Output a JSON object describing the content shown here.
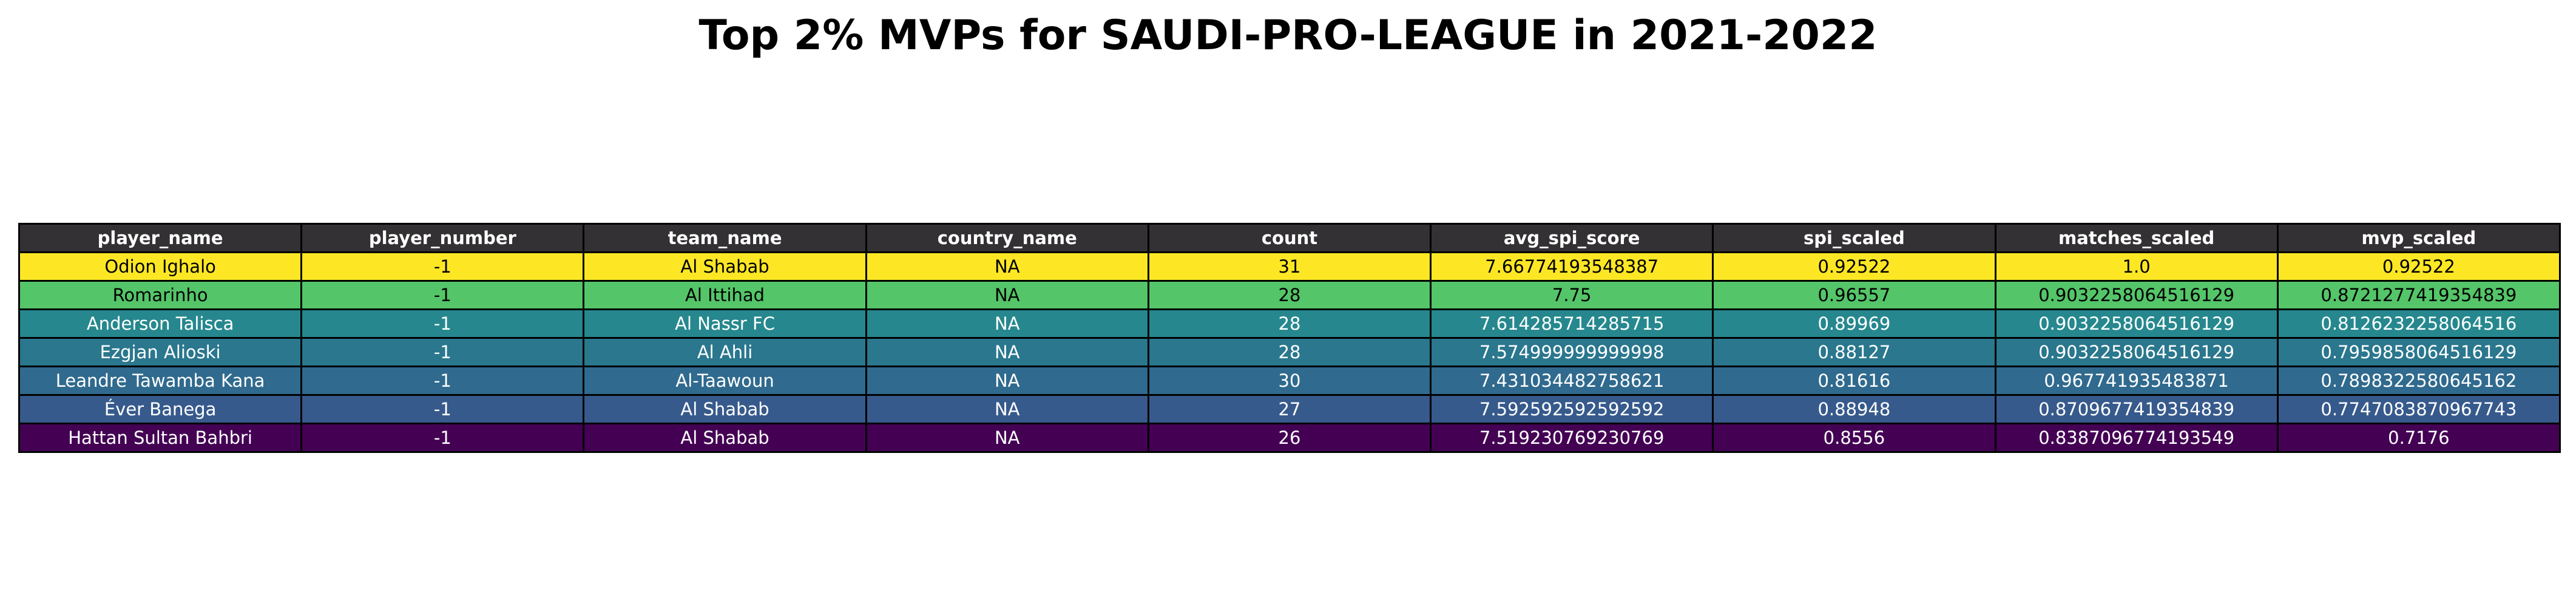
{
  "chart_data": {
    "type": "table",
    "title": "Top 2% MVPs for SAUDI-PRO-LEAGUE in 2021-2022",
    "header_color": "#333133",
    "columns": [
      "player_name",
      "player_number",
      "team_name",
      "country_name",
      "count",
      "avg_spi_score",
      "spi_scaled",
      "matches_scaled",
      "mvp_scaled"
    ],
    "rows": [
      {
        "color": "#fde725",
        "text_color": "#000000",
        "cells": [
          "Odion Ighalo",
          "-1",
          "Al Shabab",
          "NA",
          "31",
          "7.66774193548387",
          "0.92522",
          "1.0",
          "0.92522"
        ]
      },
      {
        "color": "#54c568",
        "text_color": "#000000",
        "cells": [
          "Romarinho",
          "-1",
          "Al Ittihad",
          "NA",
          "28",
          "7.75",
          "0.96557",
          "0.9032258064516129",
          "0.8721277419354839"
        ]
      },
      {
        "color": "#26888e",
        "text_color": "#ffffff",
        "cells": [
          "Anderson Talisca",
          "-1",
          "Al Nassr FC",
          "NA",
          "28",
          "7.614285714285715",
          "0.89969",
          "0.9032258064516129",
          "0.8126232258064516"
        ]
      },
      {
        "color": "#2a778e",
        "text_color": "#ffffff",
        "cells": [
          "Ezgjan Alioski",
          "-1",
          "Al Ahli",
          "NA",
          "28",
          "7.574999999999998",
          "0.88127",
          "0.9032258064516129",
          "0.7959858064516129"
        ]
      },
      {
        "color": "#306a8e",
        "text_color": "#ffffff",
        "cells": [
          "Leandre Tawamba Kana",
          "-1",
          "Al-Taawoun",
          "NA",
          "30",
          "7.431034482758621",
          "0.81616",
          "0.967741935483871",
          "0.7898322580645162"
        ]
      },
      {
        "color": "#375a8c",
        "text_color": "#ffffff",
        "cells": [
          "Éver Banega",
          "-1",
          "Al Shabab",
          "NA",
          "27",
          "7.592592592592592",
          "0.88948",
          "0.8709677419354839",
          "0.7747083870967743"
        ]
      },
      {
        "color": "#440154",
        "text_color": "#ffffff",
        "cells": [
          "Hattan Sultan Bahbri",
          "-1",
          "Al Shabab",
          "NA",
          "26",
          "7.519230769230769",
          "0.8556",
          "0.8387096774193549",
          "0.7176"
        ]
      }
    ]
  }
}
